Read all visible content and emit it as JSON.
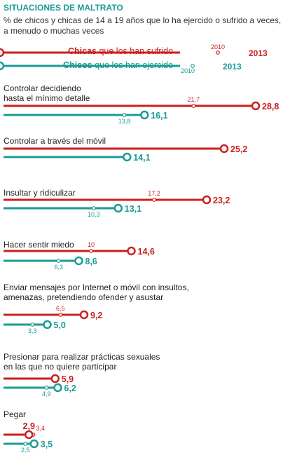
{
  "title": "SITUACIONES DE MALTRATO",
  "subtitle": "% de chicos y chicas de 14 a 19 años que lo ha ejercido o sufrido a veces, a menudo o muchas veces",
  "legend": {
    "girls_strong": "Chicas",
    "girls_rest": " que los han sufrido",
    "boys_strong": "Chicos",
    "boys_rest": " que los han ejercido",
    "year_old": "2010",
    "year_new": "2013"
  },
  "colors": {
    "girls": "#cc1f1f",
    "boys": "#1a9b96"
  },
  "chart_data": {
    "type": "bar",
    "title": "SITUACIONES DE MALTRATO",
    "series_meaning": {
      "girls": "Chicas que los han sufrido",
      "boys": "Chicos que los han ejercido"
    },
    "years": [
      "2010",
      "2013"
    ],
    "categories": [
      {
        "label": "Controlar decidiendo\nhasta el mínimo detalle",
        "girls": {
          "y2010": "21,7",
          "y2013": "28,8"
        },
        "boys": {
          "y2010": "13,8",
          "y2013": "16,1"
        }
      },
      {
        "label": "Controlar a través del móvil",
        "girls": {
          "y2010": null,
          "y2013": "25,2"
        },
        "boys": {
          "y2010": null,
          "y2013": "14,1"
        }
      },
      {
        "label": "Insultar y ridiculizar",
        "girls": {
          "y2010": "17,2",
          "y2013": "23,2"
        },
        "boys": {
          "y2010": "10,3",
          "y2013": "13,1"
        }
      },
      {
        "label": "Hacer sentir miedo",
        "girls": {
          "y2010": "10",
          "y2013": "14,6"
        },
        "boys": {
          "y2010": "6,3",
          "y2013": "8,6"
        }
      },
      {
        "label": "Enviar mensajes por Internet o móvil con insultos,\namenazas, pretendiendo ofender y asustar",
        "girls": {
          "y2010": "6,5",
          "y2013": "9,2"
        },
        "boys": {
          "y2010": "3,3",
          "y2013": "5,0"
        }
      },
      {
        "label": "Presionar para realizar prácticas sexuales\nen las que no quiere participar",
        "girls": {
          "y2010": null,
          "y2013": "5,9"
        },
        "boys": {
          "y2010": "4,9",
          "y2013": "6,2"
        }
      },
      {
        "label": "Pegar",
        "girls": {
          "y2010": "3,4",
          "y2013": "2,9"
        },
        "boys": {
          "y2010": "2,5",
          "y2013": "3,5"
        }
      }
    ]
  }
}
